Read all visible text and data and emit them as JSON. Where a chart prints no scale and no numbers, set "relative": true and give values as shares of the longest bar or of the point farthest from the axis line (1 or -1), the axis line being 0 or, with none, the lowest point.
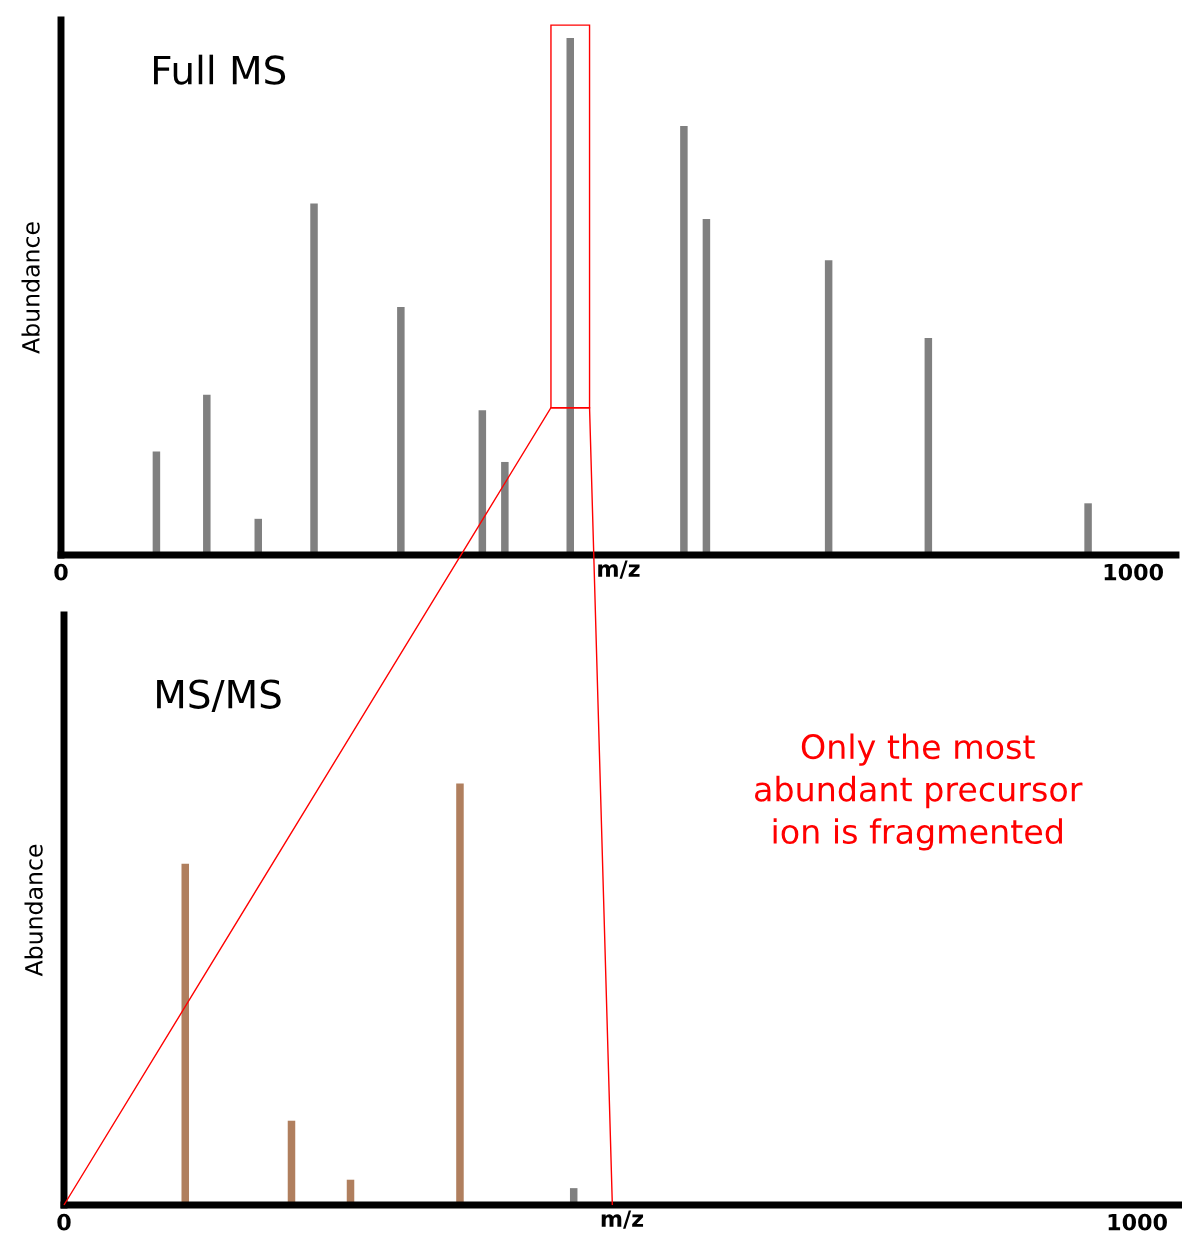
{
  "chart_data": [
    {
      "type": "bar",
      "title": "Full MS",
      "xlabel": "m/z",
      "ylabel": "Abundance",
      "relative": true,
      "xlim": [
        0,
        1040
      ],
      "xticks": [
        0,
        1000
      ],
      "tick_labels": "x",
      "x": [
        89,
        136,
        184,
        236,
        317,
        393,
        414,
        475,
        581,
        602,
        716,
        809,
        958
      ],
      "values": [
        0.2,
        0.31,
        0.07,
        0.68,
        0.48,
        0.28,
        0.18,
        1.0,
        0.83,
        0.65,
        0.57,
        0.42,
        0.1
      ],
      "color": "#808080"
    },
    {
      "type": "bar",
      "title": "MS/MS",
      "xlabel": "m/z",
      "ylabel": "Abundance",
      "relative": true,
      "xlim": [
        0,
        1040
      ],
      "xticks": [
        0,
        1000
      ],
      "tick_labels": "x",
      "x": [
        113,
        212,
        267,
        369,
        475
      ],
      "values": [
        0.81,
        0.2,
        0.06,
        1.0,
        0.04
      ],
      "colors": [
        "#b07f5e",
        "#b07f5e",
        "#b07f5e",
        "#b07f5e",
        "#808080"
      ],
      "annotations": [
        "Only the most\nabundant precursor\nion is fragmented"
      ]
    }
  ]
}
